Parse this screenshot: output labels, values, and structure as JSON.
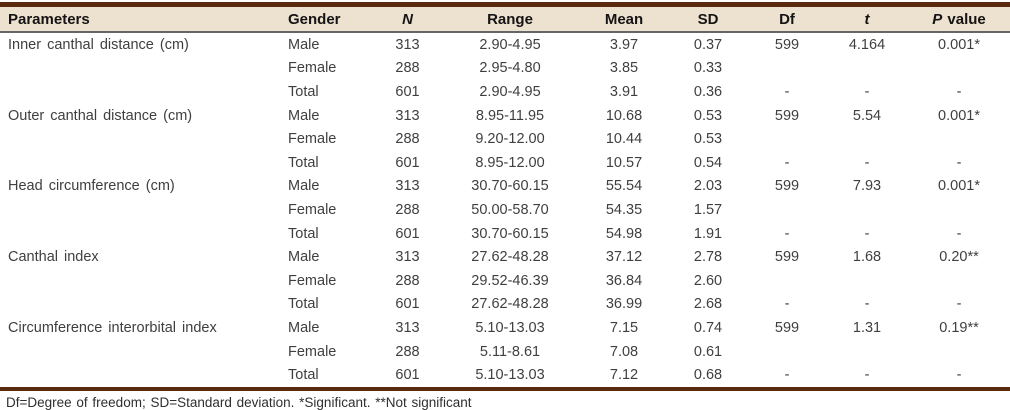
{
  "colors": {
    "accent_brown": "#5a2a0e",
    "header_beige": "#ede1d0",
    "header_rule_gray": "#666666",
    "body_text": "#3f3f3f"
  },
  "table": {
    "headers": {
      "parameters": "Parameters",
      "gender": "Gender",
      "n": "N",
      "range": "Range",
      "mean": "Mean",
      "sd": "SD",
      "df": "Df",
      "t": "t",
      "p_italic": "P",
      "p_rest": "value"
    },
    "groups": [
      {
        "parameter": "Inner canthal distance (cm)",
        "rows": [
          {
            "gender": "Male",
            "n": "313",
            "range": "2.90-4.95",
            "mean": "3.97",
            "sd": "0.37",
            "df": "599",
            "t": "4.164",
            "p": "0.001*"
          },
          {
            "gender": "Female",
            "n": "288",
            "range": "2.95-4.80",
            "mean": "3.85",
            "sd": "0.33",
            "df": "",
            "t": "",
            "p": ""
          },
          {
            "gender": "Total",
            "n": "601",
            "range": "2.90-4.95",
            "mean": "3.91",
            "sd": "0.36",
            "df": "-",
            "t": "-",
            "p": "-"
          }
        ]
      },
      {
        "parameter": "Outer canthal distance (cm)",
        "rows": [
          {
            "gender": "Male",
            "n": "313",
            "range": "8.95-11.95",
            "mean": "10.68",
            "sd": "0.53",
            "df": "599",
            "t": "5.54",
            "p": "0.001*"
          },
          {
            "gender": "Female",
            "n": "288",
            "range": "9.20-12.00",
            "mean": "10.44",
            "sd": "0.53",
            "df": "",
            "t": "",
            "p": ""
          },
          {
            "gender": "Total",
            "n": "601",
            "range": "8.95-12.00",
            "mean": "10.57",
            "sd": "0.54",
            "df": "-",
            "t": "-",
            "p": "-"
          }
        ]
      },
      {
        "parameter": "Head circumference (cm)",
        "rows": [
          {
            "gender": "Male",
            "n": "313",
            "range": "30.70-60.15",
            "mean": "55.54",
            "sd": "2.03",
            "df": "599",
            "t": "7.93",
            "p": "0.001*"
          },
          {
            "gender": "Female",
            "n": "288",
            "range": "50.00-58.70",
            "mean": "54.35",
            "sd": "1.57",
            "df": "",
            "t": "",
            "p": ""
          },
          {
            "gender": "Total",
            "n": "601",
            "range": "30.70-60.15",
            "mean": "54.98",
            "sd": "1.91",
            "df": "-",
            "t": "-",
            "p": "-"
          }
        ]
      },
      {
        "parameter": "Canthal index",
        "rows": [
          {
            "gender": "Male",
            "n": "313",
            "range": "27.62-48.28",
            "mean": "37.12",
            "sd": "2.78",
            "df": "599",
            "t": "1.68",
            "p": "0.20**"
          },
          {
            "gender": "Female",
            "n": "288",
            "range": "29.52-46.39",
            "mean": "36.84",
            "sd": "2.60",
            "df": "",
            "t": "",
            "p": ""
          },
          {
            "gender": "Total",
            "n": "601",
            "range": "27.62-48.28",
            "mean": "36.99",
            "sd": "2.68",
            "df": "-",
            "t": "-",
            "p": "-"
          }
        ]
      },
      {
        "parameter": "Circumference interorbital index",
        "rows": [
          {
            "gender": "Male",
            "n": "313",
            "range": "5.10-13.03",
            "mean": "7.15",
            "sd": "0.74",
            "df": "599",
            "t": "1.31",
            "p": "0.19**"
          },
          {
            "gender": "Female",
            "n": "288",
            "range": "5.11-8.61",
            "mean": "7.08",
            "sd": "0.61",
            "df": "",
            "t": "",
            "p": ""
          },
          {
            "gender": "Total",
            "n": "601",
            "range": "5.10-13.03",
            "mean": "7.12",
            "sd": "0.68",
            "df": "-",
            "t": "-",
            "p": "-"
          }
        ]
      }
    ],
    "footnote": "Df=Degree of freedom; SD=Standard deviation. *Significant. **Not significant"
  }
}
